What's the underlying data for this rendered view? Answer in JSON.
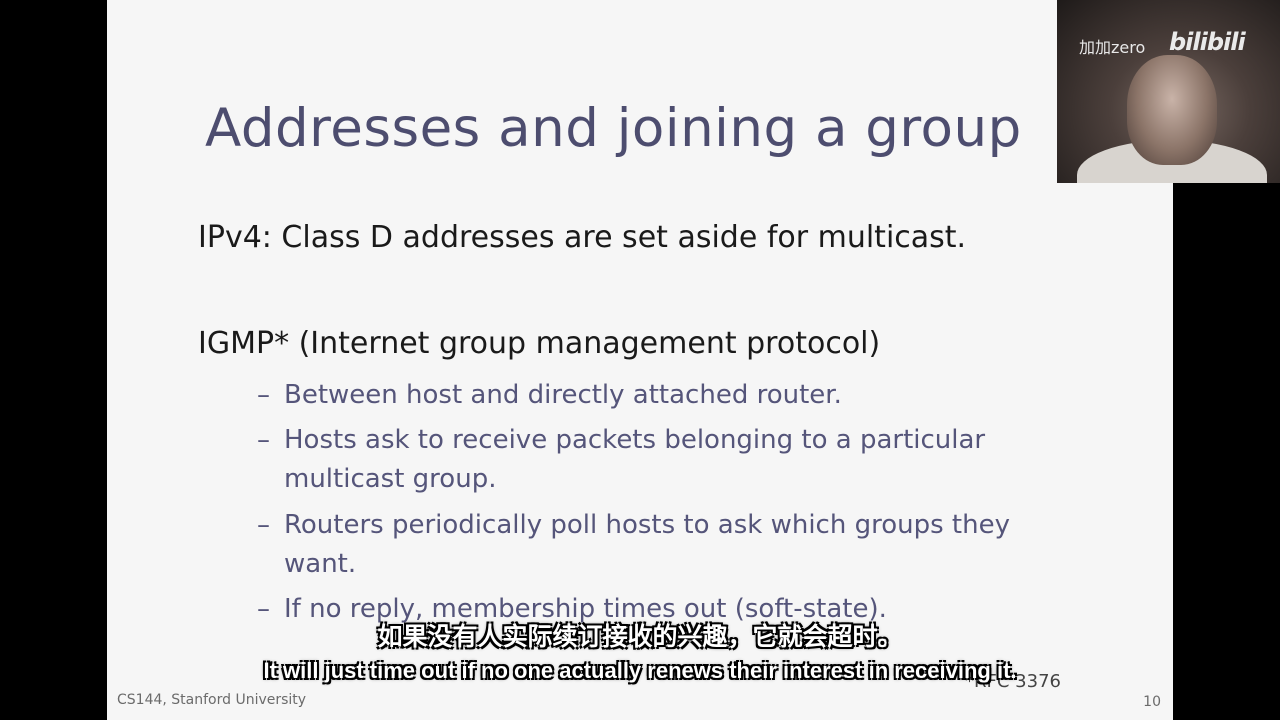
{
  "slide": {
    "title": "Addresses and joining a group",
    "bullets": [
      {
        "text": "IPv4: Class D addresses are set aside for multicast."
      },
      {
        "text": "IGMP* (Internet group management protocol)"
      }
    ],
    "sub_bullets": [
      {
        "dash": "–",
        "text": "Between host and directly attached router."
      },
      {
        "dash": "–",
        "text": "Hosts ask to receive packets belonging to a particular multicast group."
      },
      {
        "dash": "–",
        "text": "Routers periodically poll hosts to ask which groups they want."
      },
      {
        "dash": "–",
        "text": "If no reply, membership times out (soft-state)."
      }
    ],
    "footnote": "*RFC 3376",
    "footer_left": "CS144, Stanford University",
    "page_number": "10"
  },
  "watermark": {
    "text": "加加zero",
    "logo": "bilibili"
  },
  "subtitles": {
    "zh": "如果没有人实际续订接收的兴趣，它就会超时。",
    "en": "It will just time out if no one actually renews their interest in receiving it."
  }
}
